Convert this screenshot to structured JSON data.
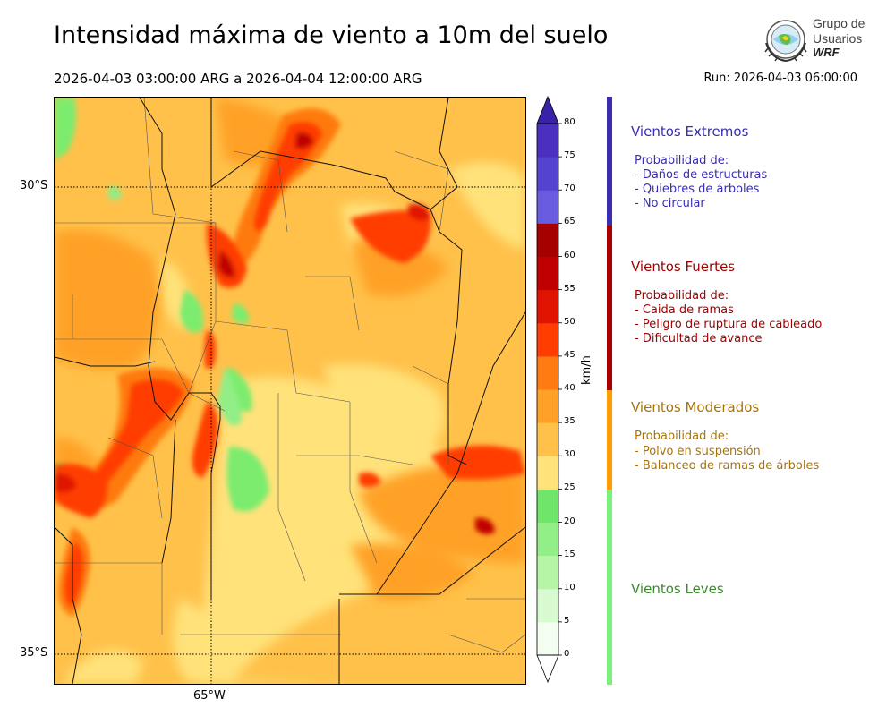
{
  "header": {
    "title": "Intensidad máxima de viento a 10m del suelo",
    "date_range": "2026-04-03 03:00:00 ARG  a  2026-04-04 12:00:00 ARG",
    "run": "Run: 2026-04-03 06:00:00"
  },
  "logo": {
    "line1": "Grupo de",
    "line2": "Usuarios",
    "line3": "WRF"
  },
  "map": {
    "lat_labels": [
      "30°S",
      "35°S"
    ],
    "lon_labels": [
      "65°W"
    ]
  },
  "colorbar": {
    "unit": "km/h",
    "ticks": [
      "0",
      "5",
      "10",
      "15",
      "20",
      "25",
      "30",
      "35",
      "40",
      "45",
      "50",
      "55",
      "60",
      "65",
      "70",
      "75",
      "80"
    ],
    "colors": [
      "#f4fef0",
      "#d8fad0",
      "#b6f4a6",
      "#92ee86",
      "#6fe66a",
      "#ffe27a",
      "#ffc14a",
      "#ffa126",
      "#ff7a10",
      "#ff3d00",
      "#e01400",
      "#c00000",
      "#a60000",
      "#6a5ce0",
      "#5442d0",
      "#4a2fc0"
    ]
  },
  "legend": {
    "categories": [
      {
        "title": "Vientos Extremos",
        "color": "#3a2db0",
        "lines": [
          "Probabilidad de:",
          "- Daños de estructuras",
          "- Quiebres de árboles",
          "- No circular"
        ]
      },
      {
        "title": "Vientos Fuertes",
        "color": "#9e0000",
        "lines": [
          "Probabilidad de:",
          "- Caida de ramas",
          "- Peligro de ruptura de cableado",
          "- Dificultad de avance"
        ]
      },
      {
        "title": "Vientos Moderados",
        "color": "#a8730a",
        "lines": [
          "Probabilidad de:",
          "- Polvo en suspensión",
          "- Balanceo de ramas de árboles"
        ]
      },
      {
        "title": "Vientos Leves",
        "color": "#3c8a2c",
        "lines": []
      }
    ],
    "bar_colors": [
      "#3a2db0",
      "#a80000",
      "#ff9c00",
      "#7cf07a"
    ]
  }
}
